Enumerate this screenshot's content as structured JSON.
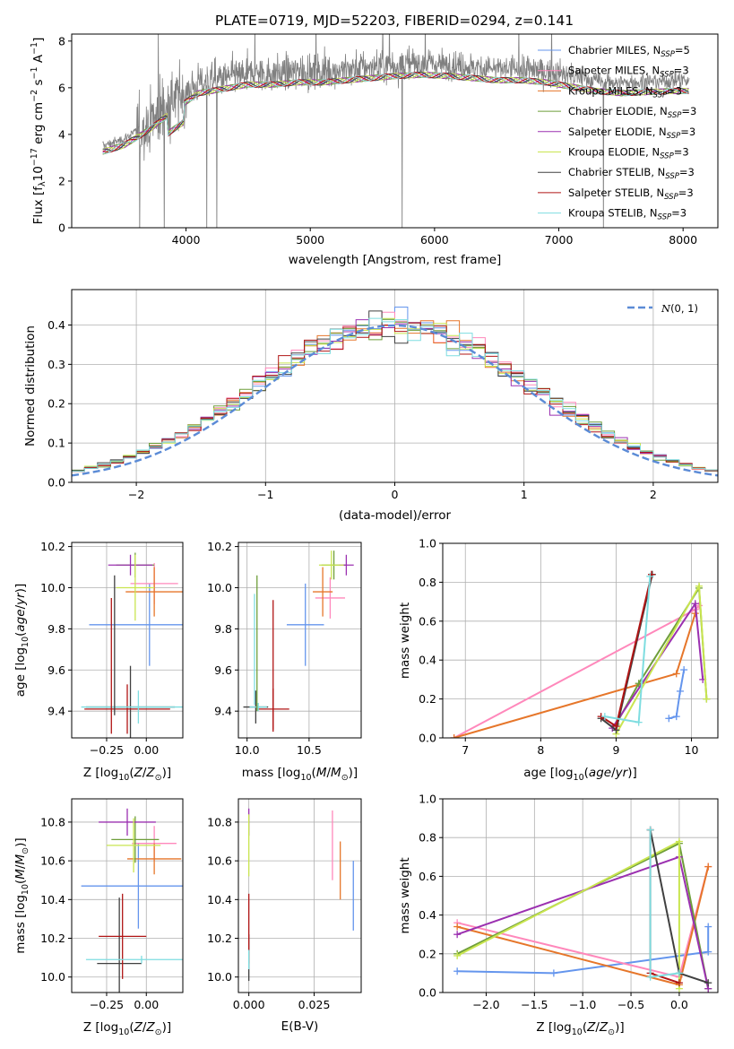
{
  "figure": {
    "title": "PLATE=0719, MJD=52203, FIBERID=0294, z=0.141"
  },
  "models": [
    {
      "label": "Chabrier MILES, N",
      "sub": "SSP",
      "suffix": "=5",
      "color": "#6495ED"
    },
    {
      "label": "Salpeter MILES, N",
      "sub": "SSP",
      "suffix": "=3",
      "color": "#FF88BB"
    },
    {
      "label": "Kroupa MILES, N",
      "sub": "SSP",
      "suffix": "=3",
      "color": "#E6762A"
    },
    {
      "label": "Chabrier ELODIE, N",
      "sub": "SSP",
      "suffix": "=3",
      "color": "#6E9E3A"
    },
    {
      "label": "Salpeter ELODIE, N",
      "sub": "SSP",
      "suffix": "=3",
      "color": "#9B30B0"
    },
    {
      "label": "Kroupa ELODIE, N",
      "sub": "SSP",
      "suffix": "=3",
      "color": "#C9E550"
    },
    {
      "label": "Chabrier STELIB, N",
      "sub": "SSP",
      "suffix": "=3",
      "color": "#404040"
    },
    {
      "label": "Salpeter STELIB, N",
      "sub": "SSP",
      "suffix": "=3",
      "color": "#B01515"
    },
    {
      "label": "Kroupa STELIB, N",
      "sub": "SSP",
      "suffix": "=3",
      "color": "#7EDDE0"
    }
  ],
  "chart_data": [
    {
      "id": "spectrum",
      "type": "line",
      "xlabel": "wavelength [Angstrom, rest frame]",
      "ylabel_parts": [
        "Flux [f",
        "λ",
        "10",
        "−17",
        " erg cm",
        "−2",
        " s",
        "−1",
        " A",
        "−1",
        "]"
      ],
      "xlim": [
        3080,
        8280
      ],
      "ylim": [
        0,
        8.3
      ],
      "xticks": [
        4000,
        5000,
        6000,
        7000,
        8000
      ],
      "yticks": [
        0,
        2,
        4,
        6,
        8
      ],
      "data_color": "#808080",
      "continuum": {
        "x": [
          3330,
          3500,
          3700,
          3900,
          4100,
          4300,
          4500,
          4700,
          4900,
          5100,
          5300,
          5500,
          5700,
          5900,
          6100,
          6300,
          6500,
          6700,
          6900,
          7100,
          7300,
          7500,
          7700,
          7900,
          8050
        ],
        "y": [
          3.5,
          3.8,
          4.5,
          5.4,
          6.2,
          6.4,
          6.6,
          6.6,
          6.7,
          6.7,
          6.8,
          6.9,
          7.0,
          7.05,
          7.0,
          6.9,
          6.8,
          6.8,
          6.7,
          6.5,
          6.3,
          6.2,
          6.25,
          6.3,
          6.3
        ]
      },
      "data_x_range": [
        3330,
        8050
      ]
    },
    {
      "id": "residuals",
      "type": "step",
      "xlabel": "(data-model)/error",
      "ylabel": "Normed distribution",
      "xlim": [
        -2.5,
        2.5
      ],
      "ylim": [
        0,
        0.49
      ],
      "xticks": [
        -2,
        -1,
        0,
        1,
        2
      ],
      "yticks": [
        0,
        0.1,
        0.2,
        0.3,
        0.4
      ],
      "bin_width": 0.1,
      "reference": {
        "name": "N(0,1)",
        "color": "#5B8BD6"
      }
    },
    {
      "id": "age-vs-Z",
      "type": "errorbar",
      "xlabel": "Z [log10(Z/Z☉)]",
      "ylabel": "age  [log10(age/yr)]",
      "xlim": [
        -0.47,
        0.23
      ],
      "ylim": [
        9.27,
        10.22
      ],
      "xticks": [
        -0.25,
        0.0
      ],
      "yticks": [
        9.4,
        9.6,
        9.8,
        10.0,
        10.2
      ],
      "points": [
        {
          "m": 0,
          "x": 0.02,
          "y": 9.82,
          "ex": 0.38,
          "ey": 0.2
        },
        {
          "m": 1,
          "x": 0.05,
          "y": 10.02,
          "ex": 0.15,
          "ey": 0.1
        },
        {
          "m": 2,
          "x": 0.05,
          "y": 9.98,
          "ex": 0.18,
          "ey": 0.12
        },
        {
          "m": 3,
          "x": -0.07,
          "y": 10.11,
          "ex": 0.12,
          "ey": 0.06
        },
        {
          "m": 4,
          "x": -0.1,
          "y": 10.11,
          "ex": 0.14,
          "ey": 0.05
        },
        {
          "m": 5,
          "x": -0.07,
          "y": 10.0,
          "ex": 0.12,
          "ey": 0.16
        },
        {
          "m": 6,
          "x": -0.1,
          "y": 9.42,
          "ex": 0.28,
          "ey": 0.2
        },
        {
          "m": 7,
          "x": -0.12,
          "y": 9.41,
          "ex": 0.27,
          "ey": 0.12
        },
        {
          "m": 8,
          "x": -0.05,
          "y": 9.42,
          "ex": 0.36,
          "ey": 0.08
        },
        {
          "m": 7,
          "x": -0.22,
          "y": 9.62,
          "ex": 0.0,
          "ey": 0.33
        },
        {
          "m": 6,
          "x": -0.2,
          "y": 9.72,
          "ex": 0.0,
          "ey": 0.34
        }
      ]
    },
    {
      "id": "age-vs-mass",
      "type": "errorbar",
      "xlabel": "mass [log10(M/M☉)]",
      "ylabel": "",
      "xlim": [
        9.93,
        10.92
      ],
      "ylim": [
        9.27,
        10.22
      ],
      "xticks": [
        10.0,
        10.5
      ],
      "yticks": [
        9.4,
        9.6,
        9.8,
        10.0,
        10.2
      ],
      "points": [
        {
          "m": 0,
          "x": 10.47,
          "y": 9.82,
          "ex": 0.15,
          "ey": 0.2
        },
        {
          "m": 1,
          "x": 10.67,
          "y": 9.95,
          "ex": 0.12,
          "ey": 0.1
        },
        {
          "m": 2,
          "x": 10.61,
          "y": 9.98,
          "ex": 0.08,
          "ey": 0.12
        },
        {
          "m": 3,
          "x": 10.7,
          "y": 10.11,
          "ex": 0.1,
          "ey": 0.07
        },
        {
          "m": 4,
          "x": 10.8,
          "y": 10.11,
          "ex": 0.06,
          "ey": 0.05
        },
        {
          "m": 5,
          "x": 10.68,
          "y": 10.11,
          "ex": 0.1,
          "ey": 0.07
        },
        {
          "m": 6,
          "x": 10.07,
          "y": 9.42,
          "ex": 0.1,
          "ey": 0.08
        },
        {
          "m": 7,
          "x": 10.21,
          "y": 9.41,
          "ex": 0.13,
          "ey": 0.1
        },
        {
          "m": 8,
          "x": 10.09,
          "y": 9.42,
          "ex": 0.07,
          "ey": 0.02
        },
        {
          "m": 7,
          "x": 10.21,
          "y": 9.62,
          "ex": 0.0,
          "ey": 0.32
        },
        {
          "m": 3,
          "x": 10.08,
          "y": 9.73,
          "ex": 0.0,
          "ey": 0.33
        },
        {
          "m": 8,
          "x": 10.06,
          "y": 9.7,
          "ex": 0.0,
          "ey": 0.27
        }
      ]
    },
    {
      "id": "weight-vs-age",
      "type": "line",
      "xlabel": "age  [log10(age/yr)]",
      "ylabel": "mass weight",
      "xlim": [
        6.7,
        10.35
      ],
      "ylim": [
        0,
        1.0
      ],
      "xticks": [
        7,
        8,
        9,
        10
      ],
      "yticks": [
        0,
        0.2,
        0.4,
        0.6,
        0.8,
        1.0
      ],
      "grid": true,
      "series": [
        {
          "m": 0,
          "x": [
            9.7,
            9.8,
            9.85,
            9.9
          ],
          "y": [
            0.1,
            0.11,
            0.24,
            0.35
          ]
        },
        {
          "m": 1,
          "x": [
            6.85,
            10.05,
            10.1
          ],
          "y": [
            0.0,
            0.66,
            0.68
          ]
        },
        {
          "m": 2,
          "x": [
            6.85,
            9.8,
            10.05
          ],
          "y": [
            0.0,
            0.33,
            0.64
          ]
        },
        {
          "m": 3,
          "x": [
            9.0,
            9.3,
            10.1,
            10.2
          ],
          "y": [
            0.07,
            0.28,
            0.77,
            0.2
          ]
        },
        {
          "m": 4,
          "x": [
            8.95,
            10.05,
            10.15
          ],
          "y": [
            0.05,
            0.69,
            0.3
          ]
        },
        {
          "m": 5,
          "x": [
            9.0,
            10.1,
            10.2
          ],
          "y": [
            0.02,
            0.78,
            0.2
          ]
        },
        {
          "m": 6,
          "x": [
            8.8,
            9.0,
            9.48
          ],
          "y": [
            0.1,
            0.04,
            0.84
          ]
        },
        {
          "m": 7,
          "x": [
            8.8,
            9.0,
            9.47
          ],
          "y": [
            0.11,
            0.06,
            0.84
          ]
        },
        {
          "m": 8,
          "x": [
            8.85,
            9.3,
            9.45
          ],
          "y": [
            0.11,
            0.08,
            0.83
          ]
        }
      ]
    },
    {
      "id": "mass-vs-Z",
      "type": "errorbar",
      "xlabel": "Z [log10(Z/Z☉)]",
      "ylabel": "mass [log10(M/M☉)]",
      "xlim": [
        -0.47,
        0.23
      ],
      "ylim": [
        9.92,
        10.92
      ],
      "xticks": [
        -0.25,
        0.0
      ],
      "yticks": [
        10.0,
        10.2,
        10.4,
        10.6,
        10.8
      ],
      "points": [
        {
          "m": 0,
          "x": -0.05,
          "y": 10.47,
          "ex": 0.36,
          "ey": 0.22
        },
        {
          "m": 1,
          "x": 0.05,
          "y": 10.69,
          "ex": 0.14,
          "ey": 0.09
        },
        {
          "m": 2,
          "x": 0.05,
          "y": 10.61,
          "ex": 0.17,
          "ey": 0.08
        },
        {
          "m": 3,
          "x": -0.07,
          "y": 10.71,
          "ex": 0.15,
          "ey": 0.12
        },
        {
          "m": 4,
          "x": -0.12,
          "y": 10.8,
          "ex": 0.18,
          "ey": 0.07
        },
        {
          "m": 5,
          "x": -0.08,
          "y": 10.68,
          "ex": 0.17,
          "ey": 0.14
        },
        {
          "m": 6,
          "x": -0.17,
          "y": 10.07,
          "ex": 0.14,
          "ey": 0.34
        },
        {
          "m": 7,
          "x": -0.15,
          "y": 10.21,
          "ex": 0.15,
          "ey": 0.22
        },
        {
          "m": 8,
          "x": -0.03,
          "y": 10.09,
          "ex": 0.35,
          "ey": 0.02
        }
      ]
    },
    {
      "id": "mass-vs-EBV",
      "type": "errorbar",
      "xlabel": "E(B-V)",
      "ylabel": "",
      "xlim": [
        -0.004,
        0.043
      ],
      "ylim": [
        9.92,
        10.92
      ],
      "xticks": [
        0.0,
        0.025
      ],
      "yticks": [
        10.0,
        10.2,
        10.4,
        10.6,
        10.8
      ],
      "points": [
        {
          "m": 0,
          "x": 0.04,
          "y": 10.42,
          "ex": 0.0,
          "ey": 0.18
        },
        {
          "m": 1,
          "x": 0.032,
          "y": 10.68,
          "ex": 0.0,
          "ey": 0.18
        },
        {
          "m": 2,
          "x": 0.035,
          "y": 10.55,
          "ex": 0.0,
          "ey": 0.15
        },
        {
          "m": 4,
          "x": 0.0,
          "y": 10.8,
          "ex": 0.0,
          "ey": 0.07
        },
        {
          "m": 5,
          "x": 0.0,
          "y": 10.68,
          "ex": 0.0,
          "ey": 0.16
        },
        {
          "m": 6,
          "x": 0.0,
          "y": 10.1,
          "ex": 0.0,
          "ey": 0.12
        },
        {
          "m": 7,
          "x": 0.0,
          "y": 10.25,
          "ex": 0.0,
          "ey": 0.18
        },
        {
          "m": 8,
          "x": 0.0,
          "y": 10.09,
          "ex": 0.0,
          "ey": 0.05
        }
      ]
    },
    {
      "id": "weight-vs-Z",
      "type": "line",
      "xlabel": "Z [log10(Z/Z☉)]",
      "ylabel": "mass weight",
      "xlim": [
        -2.45,
        0.4
      ],
      "ylim": [
        0,
        1.0
      ],
      "xticks": [
        -2.0,
        -1.5,
        -1.0,
        -0.5,
        0.0
      ],
      "yticks": [
        0,
        0.2,
        0.4,
        0.6,
        0.8,
        1.0
      ],
      "grid": true,
      "series": [
        {
          "m": 0,
          "x": [
            -2.3,
            -1.3,
            0.3,
            0.3
          ],
          "y": [
            0.11,
            0.1,
            0.21,
            0.34
          ]
        },
        {
          "m": 1,
          "x": [
            -2.3,
            0.0,
            0.3
          ],
          "y": [
            0.36,
            0.08,
            0.65
          ]
        },
        {
          "m": 2,
          "x": [
            -2.3,
            0.0,
            0.3
          ],
          "y": [
            0.34,
            0.04,
            0.65
          ]
        },
        {
          "m": 3,
          "x": [
            -2.3,
            0.0,
            0.3
          ],
          "y": [
            0.2,
            0.77,
            0.02
          ]
        },
        {
          "m": 4,
          "x": [
            -2.3,
            0.0,
            0.3
          ],
          "y": [
            0.3,
            0.7,
            0.02
          ]
        },
        {
          "m": 5,
          "x": [
            -2.3,
            0.0,
            0.0
          ],
          "y": [
            0.19,
            0.78,
            0.02
          ]
        },
        {
          "m": 6,
          "x": [
            -0.3,
            0.0,
            0.3
          ],
          "y": [
            0.84,
            0.1,
            0.05
          ]
        },
        {
          "m": 7,
          "x": [
            -0.3,
            -0.3,
            0.0
          ],
          "y": [
            0.84,
            0.1,
            0.05
          ]
        },
        {
          "m": 8,
          "x": [
            -0.3,
            -0.3,
            0.0
          ],
          "y": [
            0.84,
            0.08,
            0.1
          ]
        }
      ]
    }
  ]
}
